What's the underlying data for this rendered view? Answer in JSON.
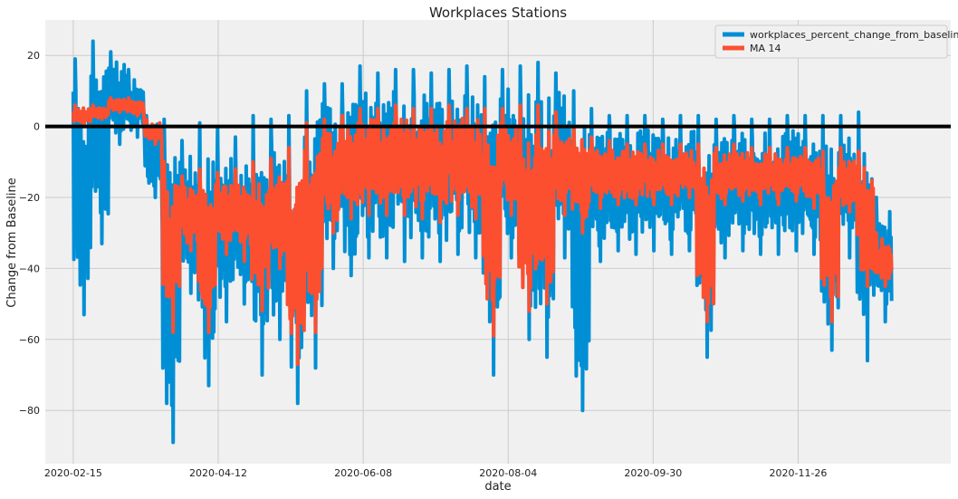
{
  "chart_data": {
    "type": "line",
    "title": "Workplaces Stations",
    "xlabel": "date",
    "ylabel": "Change from Baseline",
    "x_range": [
      "2020-02-04",
      "2021-01-25"
    ],
    "ylim": [
      -95,
      30
    ],
    "x_ticks": [
      "2020-02-15",
      "2020-04-12",
      "2020-06-08",
      "2020-08-04",
      "2020-09-30",
      "2020-11-26"
    ],
    "y_ticks": [
      20,
      0,
      -20,
      -40,
      -60,
      -80
    ],
    "grid": true,
    "background_color": "#f0f0f0",
    "legend_position": "top-right",
    "baseline": 0,
    "baseline_color": "#000000",
    "note": "each series is dense daily station data; values listed are min and max envelope per week",
    "series": [
      {
        "name": "workplaces_percent_change_from_baseline",
        "color": "#008fd5",
        "weeks": [
          "2020-02-15",
          "2020-02-22",
          "2020-02-29",
          "2020-03-07",
          "2020-03-14",
          "2020-03-21",
          "2020-03-28",
          "2020-04-04",
          "2020-04-11",
          "2020-04-18",
          "2020-04-25",
          "2020-05-02",
          "2020-05-09",
          "2020-05-16",
          "2020-05-23",
          "2020-05-30",
          "2020-06-06",
          "2020-06-13",
          "2020-06-20",
          "2020-06-27",
          "2020-07-04",
          "2020-07-11",
          "2020-07-18",
          "2020-07-25",
          "2020-08-01",
          "2020-08-08",
          "2020-08-15",
          "2020-08-22",
          "2020-08-29",
          "2020-09-05",
          "2020-09-12",
          "2020-09-19",
          "2020-09-26",
          "2020-10-03",
          "2020-10-10",
          "2020-10-17",
          "2020-10-24",
          "2020-10-31",
          "2020-11-07",
          "2020-11-14",
          "2020-11-21",
          "2020-11-28",
          "2020-12-05",
          "2020-12-12",
          "2020-12-19",
          "2020-12-26"
        ],
        "min": [
          -53,
          -33,
          -5,
          -3,
          -20,
          -89,
          -47,
          -73,
          -55,
          -50,
          -70,
          -60,
          -78,
          -68,
          -40,
          -42,
          -37,
          -37,
          -38,
          -37,
          -38,
          -36,
          -37,
          -70,
          -37,
          -60,
          -65,
          -37,
          -80,
          -38,
          -35,
          -36,
          -35,
          -36,
          -35,
          -65,
          -37,
          -35,
          -36,
          -36,
          -35,
          -36,
          -63,
          -37,
          -66,
          -55
        ],
        "max": [
          19,
          24,
          21,
          16,
          3,
          2,
          -4,
          1,
          0,
          -3,
          3,
          2,
          3,
          10,
          12,
          12,
          17,
          15,
          16,
          16,
          15,
          16,
          17,
          14,
          16,
          17,
          18,
          15,
          10,
          5,
          3,
          3,
          3,
          2,
          3,
          3,
          2,
          3,
          2,
          2,
          3,
          3,
          3,
          3,
          4,
          -20
        ]
      },
      {
        "name": "MA 14",
        "color": "#fc4f30",
        "weeks": [
          "2020-02-15",
          "2020-02-22",
          "2020-02-29",
          "2020-03-07",
          "2020-03-14",
          "2020-03-21",
          "2020-03-28",
          "2020-04-04",
          "2020-04-11",
          "2020-04-18",
          "2020-04-25",
          "2020-05-02",
          "2020-05-09",
          "2020-05-16",
          "2020-05-23",
          "2020-05-30",
          "2020-06-06",
          "2020-06-13",
          "2020-06-20",
          "2020-06-27",
          "2020-07-04",
          "2020-07-11",
          "2020-07-18",
          "2020-07-25",
          "2020-08-01",
          "2020-08-08",
          "2020-08-15",
          "2020-08-22",
          "2020-08-29",
          "2020-09-05",
          "2020-09-12",
          "2020-09-19",
          "2020-09-26",
          "2020-10-03",
          "2020-10-10",
          "2020-10-17",
          "2020-10-24",
          "2020-10-31",
          "2020-11-07",
          "2020-11-14",
          "2020-11-21",
          "2020-11-28",
          "2020-12-05",
          "2020-12-12",
          "2020-12-19",
          "2020-12-26"
        ],
        "min": [
          0,
          2,
          4,
          3,
          -5,
          -58,
          -35,
          -58,
          -36,
          -38,
          -52,
          -40,
          -67,
          -58,
          -30,
          -26,
          -25,
          -25,
          -25,
          -26,
          -27,
          -25,
          -26,
          -59,
          -25,
          -52,
          -50,
          -25,
          -30,
          -23,
          -22,
          -22,
          -22,
          -22,
          -20,
          -55,
          -22,
          -21,
          -22,
          -22,
          -21,
          -23,
          -55,
          -24,
          -45,
          -45
        ],
        "max": [
          6,
          6,
          8,
          8,
          2,
          -10,
          -14,
          -12,
          -13,
          -12,
          -10,
          -9,
          -6,
          1,
          2,
          3,
          5,
          5,
          6,
          5,
          5,
          6,
          5,
          5,
          5,
          6,
          6,
          4,
          0,
          -3,
          -4,
          -5,
          -5,
          -5,
          -5,
          -5,
          -6,
          -5,
          -6,
          -6,
          -6,
          -6,
          -7,
          -6,
          -7,
          -30
        ]
      }
    ]
  }
}
